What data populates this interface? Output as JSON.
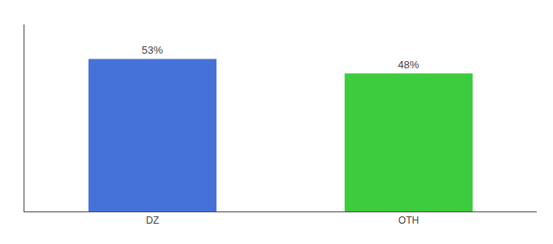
{
  "chart_data": {
    "type": "bar",
    "categories": [
      "DZ",
      "OTH"
    ],
    "values": [
      53,
      48
    ],
    "value_labels": [
      "53%",
      "48%"
    ],
    "colors": [
      "#4472d9",
      "#3dcc3d"
    ],
    "ylim": [
      0,
      65
    ],
    "grid": false,
    "data_labels": true,
    "tick_labels": "x"
  }
}
